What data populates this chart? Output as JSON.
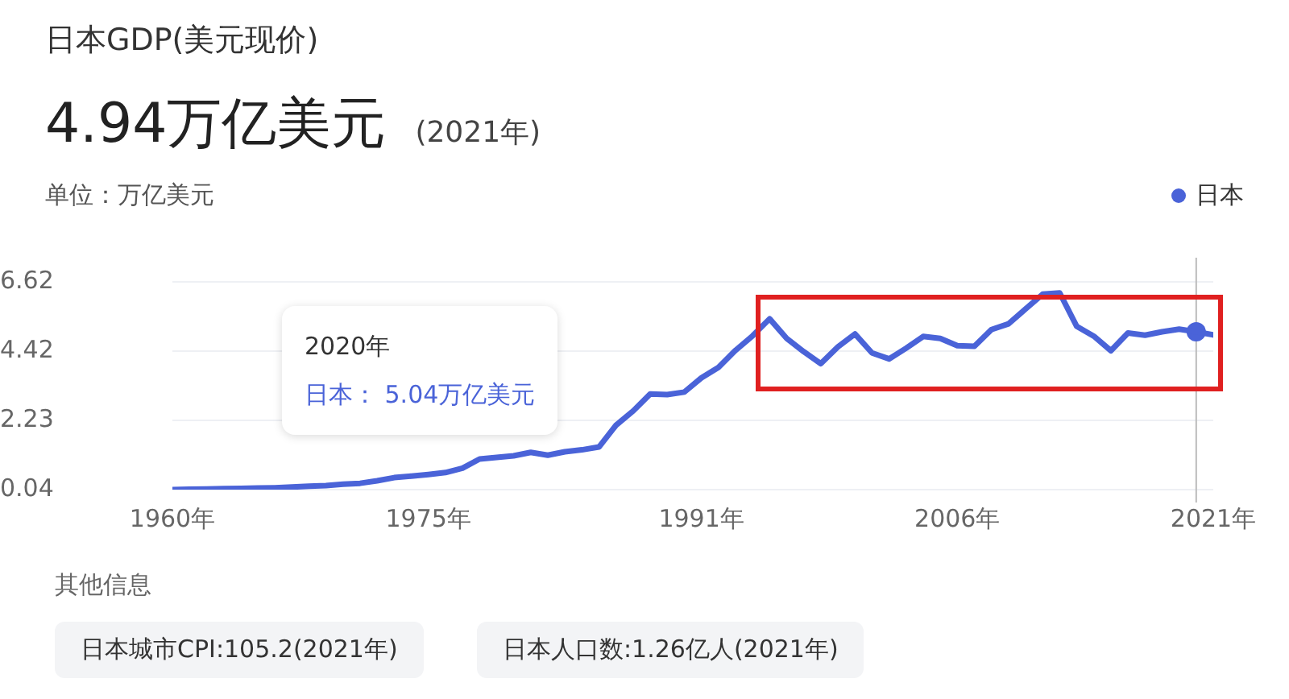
{
  "chart_data": {
    "type": "line",
    "title": "日本GDP(美元现价)",
    "subtitle": "4.94万亿美元 (2021年)",
    "ylabel": "单位：万亿美元",
    "series": [
      {
        "name": "日本",
        "color": "#4a63d8",
        "x": [
          1960,
          1961,
          1962,
          1963,
          1964,
          1965,
          1966,
          1967,
          1968,
          1969,
          1970,
          1971,
          1972,
          1973,
          1974,
          1975,
          1976,
          1977,
          1978,
          1979,
          1980,
          1981,
          1982,
          1983,
          1984,
          1985,
          1986,
          1987,
          1988,
          1989,
          1990,
          1991,
          1992,
          1993,
          1994,
          1995,
          1996,
          1997,
          1998,
          1999,
          2000,
          2001,
          2002,
          2003,
          2004,
          2005,
          2006,
          2007,
          2008,
          2009,
          2010,
          2011,
          2012,
          2013,
          2014,
          2015,
          2016,
          2017,
          2018,
          2019,
          2020,
          2021
        ],
        "values": [
          0.04,
          0.05,
          0.06,
          0.07,
          0.08,
          0.09,
          0.1,
          0.12,
          0.15,
          0.17,
          0.21,
          0.24,
          0.32,
          0.42,
          0.47,
          0.52,
          0.58,
          0.72,
          1.01,
          1.06,
          1.11,
          1.22,
          1.13,
          1.24,
          1.3,
          1.39,
          2.08,
          2.53,
          3.07,
          3.05,
          3.13,
          3.58,
          3.91,
          4.45,
          4.91,
          5.45,
          4.83,
          4.41,
          4.03,
          4.56,
          4.97,
          4.37,
          4.18,
          4.52,
          4.89,
          4.83,
          4.6,
          4.58,
          5.11,
          5.29,
          5.76,
          6.23,
          6.27,
          5.21,
          4.9,
          4.44,
          5.0,
          4.93,
          5.04,
          5.12,
          5.04,
          4.94
        ]
      },
      {
        "type": "scatter",
        "marker": "circle",
        "color": "#4a63d8",
        "x": [
          2020
        ],
        "values": [
          5.04
        ]
      }
    ],
    "xlim": [
      1960,
      2021
    ],
    "xticks": [
      {
        "value": 1960,
        "label": "1960年"
      },
      {
        "value": 1975,
        "label": "1975年"
      },
      {
        "value": 1991,
        "label": "1991年"
      },
      {
        "value": 2006,
        "label": "2006年"
      },
      {
        "value": 2021,
        "label": "2021年"
      }
    ],
    "ylim": [
      0.04,
      6.62
    ],
    "yticks": [
      0.04,
      2.23,
      4.42,
      6.62
    ],
    "grid": "y",
    "legend": "top right",
    "marker": "none",
    "line_style": "solid",
    "ref_lines": [
      {
        "axis": "x",
        "value": 2020,
        "color": "#bbbbbb"
      }
    ],
    "annotations": [
      "2020年",
      "日本： 5.04万亿美元",
      "其他信息",
      "日本城市CPI:105.2(2021年)",
      "日本人口数:1.26亿人(2021年)"
    ]
  }
}
